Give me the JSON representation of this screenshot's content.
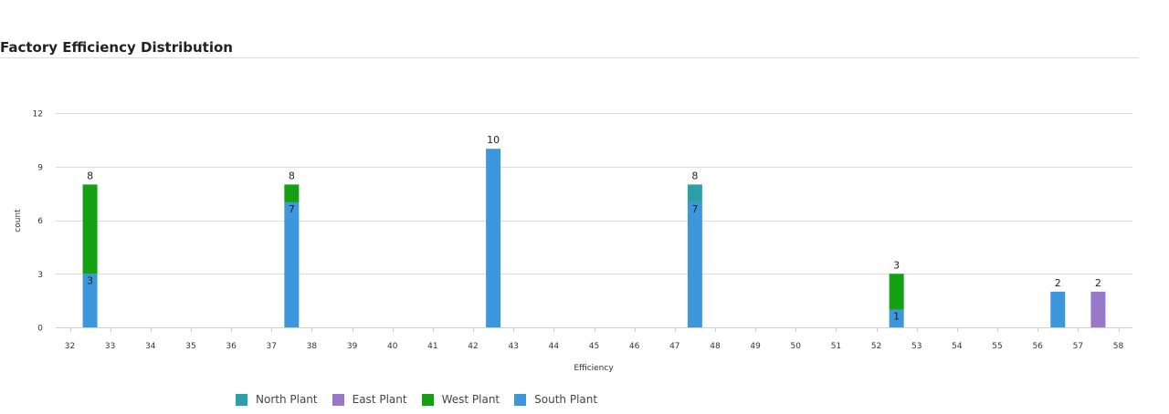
{
  "page": {
    "title": "Factory Efficiency Distribution"
  },
  "chart_data": {
    "type": "bar",
    "stacked": true,
    "title": "Factory Efficiency Distribution",
    "xlabel": "Efficiency",
    "ylabel": "count",
    "xlim": [
      32,
      58
    ],
    "ylim": [
      0,
      12
    ],
    "x_ticks": [
      32,
      33,
      34,
      35,
      36,
      37,
      38,
      39,
      40,
      41,
      42,
      43,
      44,
      45,
      46,
      47,
      48,
      49,
      50,
      51,
      52,
      53,
      54,
      55,
      56,
      57,
      58
    ],
    "y_ticks": [
      0,
      3,
      6,
      9,
      12
    ],
    "grid": true,
    "legend_position": "bottom",
    "series": [
      {
        "name": "North Plant",
        "color": "#2ca0a8",
        "points": [
          {
            "x": 47.5,
            "y": 1
          }
        ]
      },
      {
        "name": "East Plant",
        "color": "#9778c9",
        "points": [
          {
            "x": 57.5,
            "y": 2
          }
        ]
      },
      {
        "name": "West Plant",
        "color": "#13a113",
        "points": [
          {
            "x": 32.5,
            "y": 5
          },
          {
            "x": 37.5,
            "y": 1
          },
          {
            "x": 52.5,
            "y": 2
          }
        ]
      },
      {
        "name": "South Plant",
        "color": "#3d97dc",
        "points": [
          {
            "x": 32.5,
            "y": 3
          },
          {
            "x": 37.5,
            "y": 7
          },
          {
            "x": 42.5,
            "y": 10
          },
          {
            "x": 47.5,
            "y": 7
          },
          {
            "x": 52.5,
            "y": 1
          },
          {
            "x": 56.5,
            "y": 2
          }
        ]
      }
    ],
    "totals": [
      {
        "x": 32.5,
        "label": "8"
      },
      {
        "x": 37.5,
        "label": "8"
      },
      {
        "x": 42.5,
        "label": "10"
      },
      {
        "x": 47.5,
        "label": "8"
      },
      {
        "x": 52.5,
        "label": "3"
      },
      {
        "x": 56.5,
        "label": "2"
      },
      {
        "x": 57.5,
        "label": "2"
      }
    ],
    "inner_labels": [
      {
        "x": 32.5,
        "y": 3,
        "label": "3"
      },
      {
        "x": 37.5,
        "y": 7,
        "label": "7"
      },
      {
        "x": 47.5,
        "y": 7,
        "label": "7"
      },
      {
        "x": 52.5,
        "y": 1,
        "label": "1"
      }
    ]
  }
}
